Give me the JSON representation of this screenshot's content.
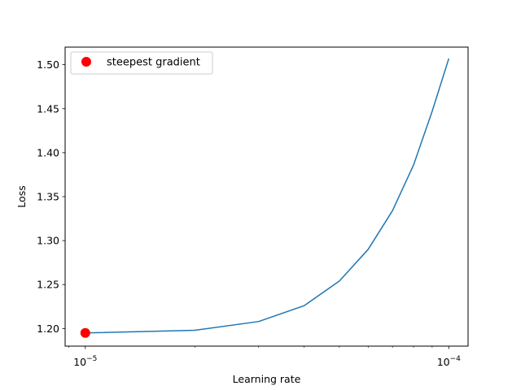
{
  "chart_data": {
    "type": "line",
    "xlabel": "Learning rate",
    "ylabel": "Loss",
    "xscale": "log",
    "xlim": [
      8.8e-06,
      0.000113
    ],
    "ylim": [
      1.18,
      1.52
    ],
    "x_ticks": [
      {
        "value": 1e-05,
        "label_base": "10",
        "label_exp": "−5"
      },
      {
        "value": 0.0001,
        "label_base": "10",
        "label_exp": "−4"
      }
    ],
    "y_ticks": [
      1.2,
      1.25,
      1.3,
      1.35,
      1.4,
      1.45,
      1.5
    ],
    "y_tick_labels": [
      "1.20",
      "1.25",
      "1.30",
      "1.35",
      "1.40",
      "1.45",
      "1.50"
    ],
    "series": [
      {
        "color": "#1f77b4",
        "x": [
          1e-05,
          2e-05,
          3e-05,
          4e-05,
          5e-05,
          6e-05,
          7e-05,
          8e-05,
          9e-05,
          0.0001
        ],
        "y": [
          1.195,
          1.198,
          1.208,
          1.226,
          1.254,
          1.29,
          1.334,
          1.386,
          1.447,
          1.507
        ]
      }
    ],
    "marker": {
      "label": "steepest gradient",
      "x": 1e-05,
      "y": 1.195,
      "color": "#ff0000"
    },
    "legend": {
      "position": "top-left",
      "entries": [
        "steepest gradient"
      ]
    },
    "grid": false
  }
}
